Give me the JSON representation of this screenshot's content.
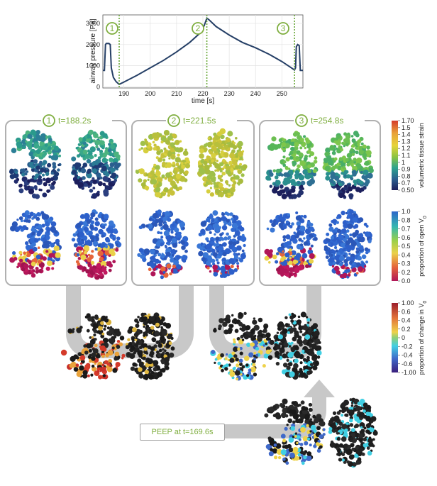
{
  "chart_data": {
    "type": "line",
    "ylabel": "airway pressure [Pa]",
    "xlabel": "time [s]",
    "xlim": [
      182,
      258
    ],
    "ylim": [
      -50,
      3400
    ],
    "xticks": [
      "190",
      "200",
      "210",
      "220",
      "230",
      "240",
      "250"
    ],
    "xtick_values": [
      190,
      200,
      210,
      220,
      230,
      240,
      250
    ],
    "yticks": [
      "0",
      "1000",
      "2000",
      "3000"
    ],
    "ytick_values": [
      0,
      1000,
      2000,
      3000
    ],
    "series": [
      {
        "name": "airway pressure",
        "color": "#253f66",
        "x": [
          182,
          182.6,
          183,
          183.3,
          184.3,
          184.8,
          185.2,
          186,
          187,
          188.2,
          190,
          195,
          200,
          205,
          210,
          215,
          219,
          220.5,
          221.5,
          222.5,
          225,
          230,
          235,
          240,
          245,
          250,
          253,
          254.8,
          255.2,
          255.5,
          256,
          256.6,
          257,
          258
        ],
        "y": [
          780,
          780,
          2000,
          2050,
          2050,
          2000,
          900,
          450,
          250,
          120,
          230,
          550,
          900,
          1250,
          1650,
          2100,
          2550,
          2900,
          3250,
          3150,
          2850,
          2450,
          2100,
          1850,
          1550,
          1200,
          950,
          800,
          900,
          1900,
          2000,
          1950,
          780,
          780
        ]
      }
    ],
    "markers": [
      {
        "label": "1",
        "x": 188.2
      },
      {
        "label": "2",
        "x": 221.5
      },
      {
        "label": "3",
        "x": 254.8
      }
    ],
    "marker_color": "#6aa83a"
  },
  "panels": [
    {
      "num": "1",
      "time": "t=188.2s"
    },
    {
      "num": "2",
      "time": "t=221.5s"
    },
    {
      "num": "3",
      "time": "t=254.8s"
    }
  ],
  "colorbars": [
    {
      "label": "volumetric tissue strain",
      "ticks": [
        "1.70",
        "1.5",
        "1.4",
        "1.3",
        "1.2",
        "1.1",
        "1",
        "0.9",
        "0.8",
        "0.7",
        "0.50"
      ]
    },
    {
      "label": "proportion of open V",
      "label_sub": "0",
      "ticks": [
        "1.0",
        "0.8",
        "0.7",
        "0.6",
        "0.5",
        "0.4",
        "0.3",
        "0.2",
        "0.0"
      ]
    },
    {
      "label": "proportion of change in V",
      "label_sub": "0",
      "ticks": [
        "1.00",
        "0.6",
        "0.4",
        "0.2",
        "0",
        "-0.2",
        "-0.4",
        "-0.6",
        "-1.00"
      ]
    }
  ],
  "peep_label": "PEEP at t=169.6s"
}
